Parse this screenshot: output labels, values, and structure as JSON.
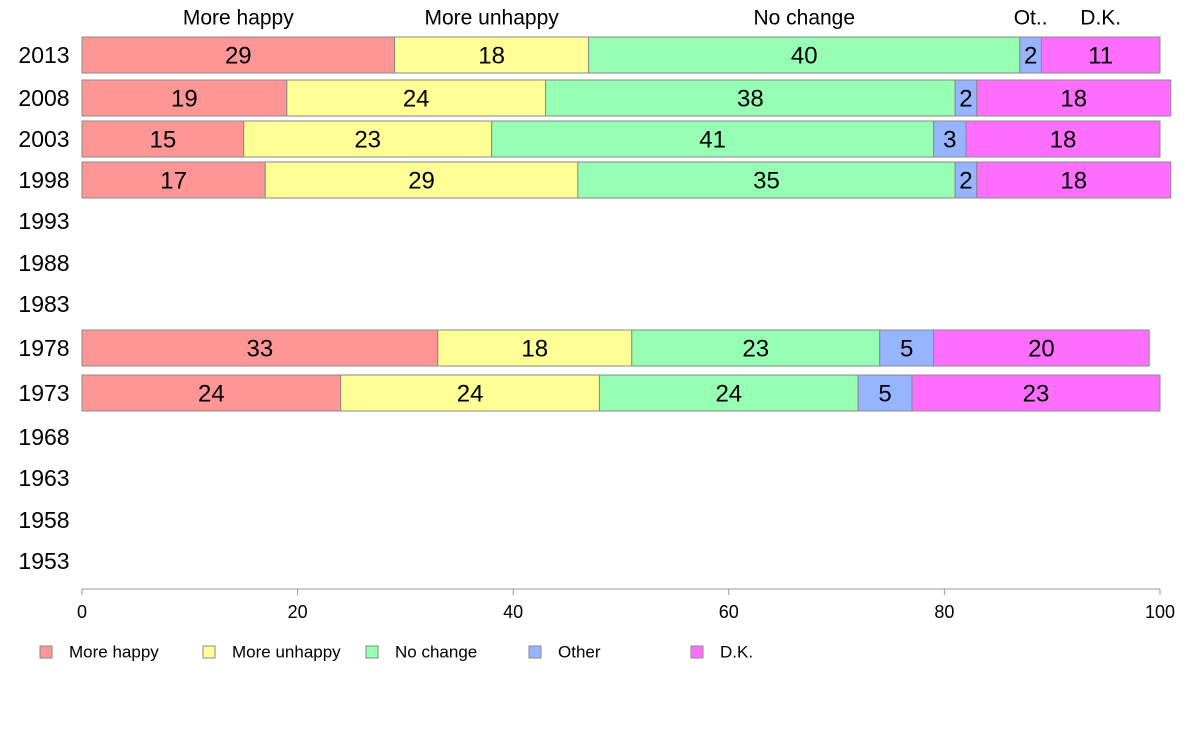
{
  "chart_data": {
    "type": "bar",
    "orientation": "horizontal",
    "stacked": true,
    "categories": [
      "2013",
      "2008",
      "2003",
      "1998",
      "1993",
      "1988",
      "1983",
      "1978",
      "1973",
      "1968",
      "1963",
      "1958",
      "1953"
    ],
    "series": [
      {
        "name": "More happy",
        "color": "#ff9696",
        "values": [
          29,
          19,
          15,
          17,
          null,
          null,
          null,
          33,
          24,
          null,
          null,
          null,
          null
        ]
      },
      {
        "name": "More unhappy",
        "color": "#ffff96",
        "values": [
          18,
          24,
          23,
          29,
          null,
          null,
          null,
          18,
          24,
          null,
          null,
          null,
          null
        ]
      },
      {
        "name": "No change",
        "color": "#96ffb4",
        "values": [
          40,
          38,
          41,
          35,
          null,
          null,
          null,
          23,
          24,
          null,
          null,
          null,
          null
        ]
      },
      {
        "name": "Other",
        "color": "#96b4ff",
        "values": [
          2,
          2,
          3,
          2,
          null,
          null,
          null,
          5,
          5,
          null,
          null,
          null,
          null
        ]
      },
      {
        "name": "D.K.",
        "color": "#ff6eff",
        "values": [
          11,
          18,
          18,
          18,
          null,
          null,
          null,
          20,
          23,
          null,
          null,
          null,
          null
        ]
      }
    ],
    "top_labels": [
      "More happy",
      "More unhappy",
      "No change",
      "Ot..",
      "D.K."
    ],
    "xlim": [
      0,
      100
    ],
    "xticks": [
      0,
      20,
      40,
      60,
      80,
      100
    ],
    "grid": false,
    "legend_position": "bottom"
  }
}
